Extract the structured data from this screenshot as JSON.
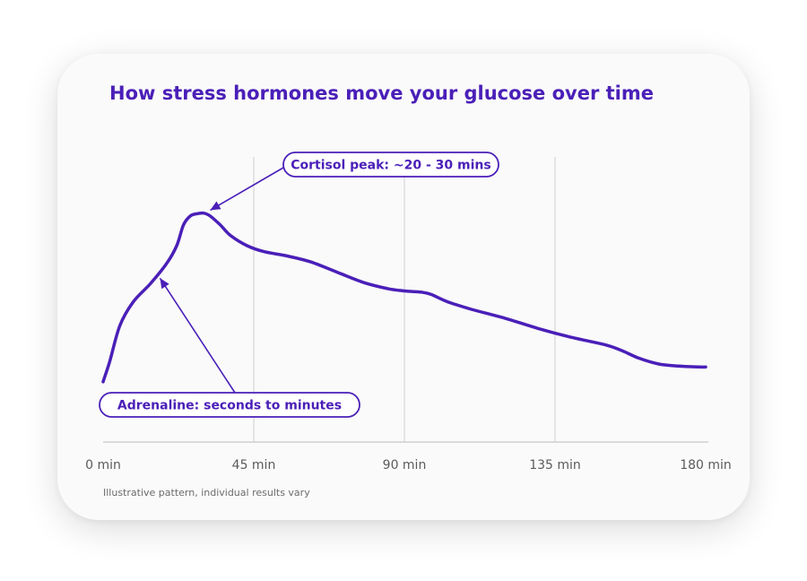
{
  "colors": {
    "accent": "#4a1fb8",
    "grid": "#d9d9d9",
    "axis": "#cfcfcf",
    "tick_text": "#5b5b5b",
    "note_text": "#6b6b6b",
    "card": "#fafafa"
  },
  "chart_data": {
    "type": "line",
    "title": "How stress hormones move your glucose over time",
    "xlabel": "",
    "ylabel": "",
    "x_unit": "min",
    "xlim": [
      0,
      180
    ],
    "ylim": [
      0,
      100
    ],
    "x_ticks": [
      0,
      45,
      90,
      135,
      180
    ],
    "x_tick_labels": [
      "0 min",
      "45 min",
      "90 min",
      "135 min",
      "180 min"
    ],
    "grid": "vertical",
    "series": [
      {
        "color": "#4a1fb8",
        "x": [
          0,
          2,
          5,
          9,
          14,
          19,
          22,
          24,
          26,
          28,
          30,
          32,
          35,
          38,
          43,
          48,
          55,
          62,
          70,
          78,
          85,
          90,
          95,
          98,
          103,
          110,
          120,
          130,
          140,
          150,
          155,
          160,
          166,
          172,
          178,
          180
        ],
        "y": [
          24,
          31,
          43,
          51,
          57,
          64,
          70,
          77,
          80,
          80.8,
          81,
          80,
          77,
          73.5,
          70,
          68,
          66.5,
          64.5,
          61,
          57.5,
          55.5,
          54.7,
          54.3,
          53.5,
          51,
          48.5,
          45.5,
          42,
          39,
          36.5,
          34.5,
          32,
          30,
          29.3,
          29,
          29
        ]
      }
    ],
    "annotations": [
      {
        "text": "Cortisol peak: ~20 - 30 mins",
        "points_to": {
          "x": 32,
          "y": 82
        }
      },
      {
        "text": "Adrenaline: seconds to minutes",
        "points_to": {
          "x": 17,
          "y": 59
        }
      }
    ],
    "note": "Illustrative pattern, individual results vary"
  }
}
